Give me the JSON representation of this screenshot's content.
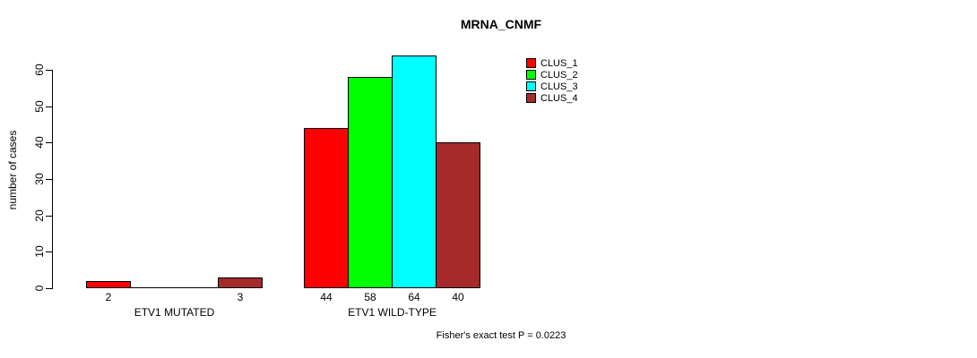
{
  "chart_data": {
    "type": "bar",
    "title": "MRNA_CNMF",
    "xlabel": "",
    "ylabel": "number of cases",
    "ylim": [
      0,
      60
    ],
    "y_ticks": [
      0,
      10,
      20,
      30,
      40,
      50,
      60
    ],
    "grid": false,
    "legend_position": "top-right",
    "categories": [
      "ETV1 MUTATED",
      "ETV1 WILD-TYPE"
    ],
    "series": [
      {
        "name": "CLUS_1",
        "color": "#ff0000",
        "values": [
          2,
          44
        ]
      },
      {
        "name": "CLUS_2",
        "color": "#00ff00",
        "values": [
          0,
          58
        ]
      },
      {
        "name": "CLUS_3",
        "color": "#00ffff",
        "values": [
          0,
          64
        ]
      },
      {
        "name": "CLUS_4",
        "color": "#a52a2a",
        "values": [
          3,
          40
        ]
      }
    ],
    "value_labels_shown": true,
    "zero_value_labels_hidden": true,
    "annotation": "Fisher's exact test P = 0.0223",
    "annotation_position": "bottom-center",
    "axis_color": "#000000",
    "background_color": "#ffffff"
  }
}
